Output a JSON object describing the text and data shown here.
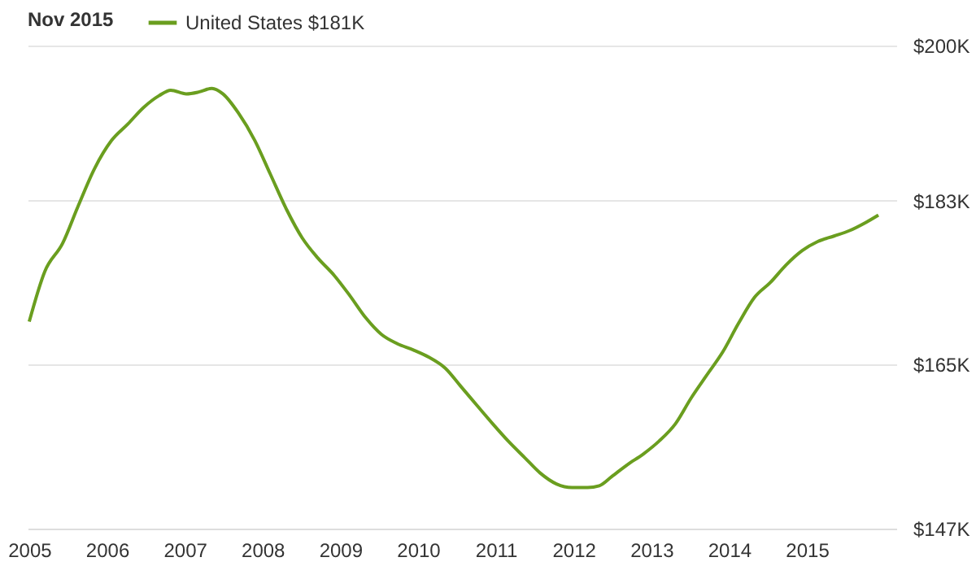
{
  "chart_data": {
    "type": "line",
    "legend_title": "Nov 2015",
    "legend": "top left",
    "grid": "y",
    "marker": "none",
    "line_style": "solid",
    "x": [
      2005.0,
      2005.2,
      2005.43,
      2005.63,
      2005.84,
      2006.06,
      2006.27,
      2006.47,
      2006.67,
      2006.82,
      2007.02,
      2007.18,
      2007.35,
      2007.49,
      2007.69,
      2007.9,
      2008.1,
      2008.31,
      2008.51,
      2008.71,
      2008.92,
      2009.12,
      2009.33,
      2009.53,
      2009.73,
      2009.94,
      2010.14,
      2010.35,
      2010.55,
      2010.76,
      2010.96,
      2011.16,
      2011.37,
      2011.57,
      2011.78,
      2011.98,
      2012.18,
      2012.33,
      2012.49,
      2012.69,
      2012.9,
      2013.1,
      2013.31,
      2013.51,
      2013.71,
      2013.92,
      2014.12,
      2014.33,
      2014.53,
      2014.73,
      2014.94,
      2015.14,
      2015.35,
      2015.55,
      2015.76,
      2015.92
    ],
    "series": [
      {
        "name": "United States $181K",
        "color": "#6a9e1f",
        "values": [
          169.7,
          175.2,
          178.3,
          182.4,
          186.5,
          189.6,
          191.4,
          193.2,
          194.5,
          195.1,
          194.7,
          194.9,
          195.3,
          194.7,
          192.6,
          189.6,
          185.9,
          182.0,
          178.9,
          176.7,
          174.8,
          172.6,
          170.1,
          168.3,
          167.3,
          166.6,
          165.8,
          164.6,
          162.6,
          160.5,
          158.5,
          156.6,
          154.8,
          153.1,
          151.9,
          151.5,
          151.5,
          151.7,
          152.7,
          154.0,
          155.2,
          156.6,
          158.5,
          161.3,
          163.8,
          166.4,
          169.5,
          172.4,
          174.0,
          175.9,
          177.5,
          178.5,
          179.1,
          179.7,
          180.6,
          181.4
        ]
      }
    ],
    "xlim": [
      2004.98,
      2016.15
    ],
    "xticks": [
      2005,
      2006,
      2007,
      2008,
      2009,
      2010,
      2011,
      2012,
      2013,
      2014,
      2015
    ],
    "ylim": [
      147,
      200
    ],
    "yticks": [
      {
        "value": 147,
        "label": "$147K"
      },
      {
        "value": 165,
        "label": "$165K"
      },
      {
        "value": 183,
        "label": "$183K"
      },
      {
        "value": 200,
        "label": "$200K"
      }
    ]
  }
}
